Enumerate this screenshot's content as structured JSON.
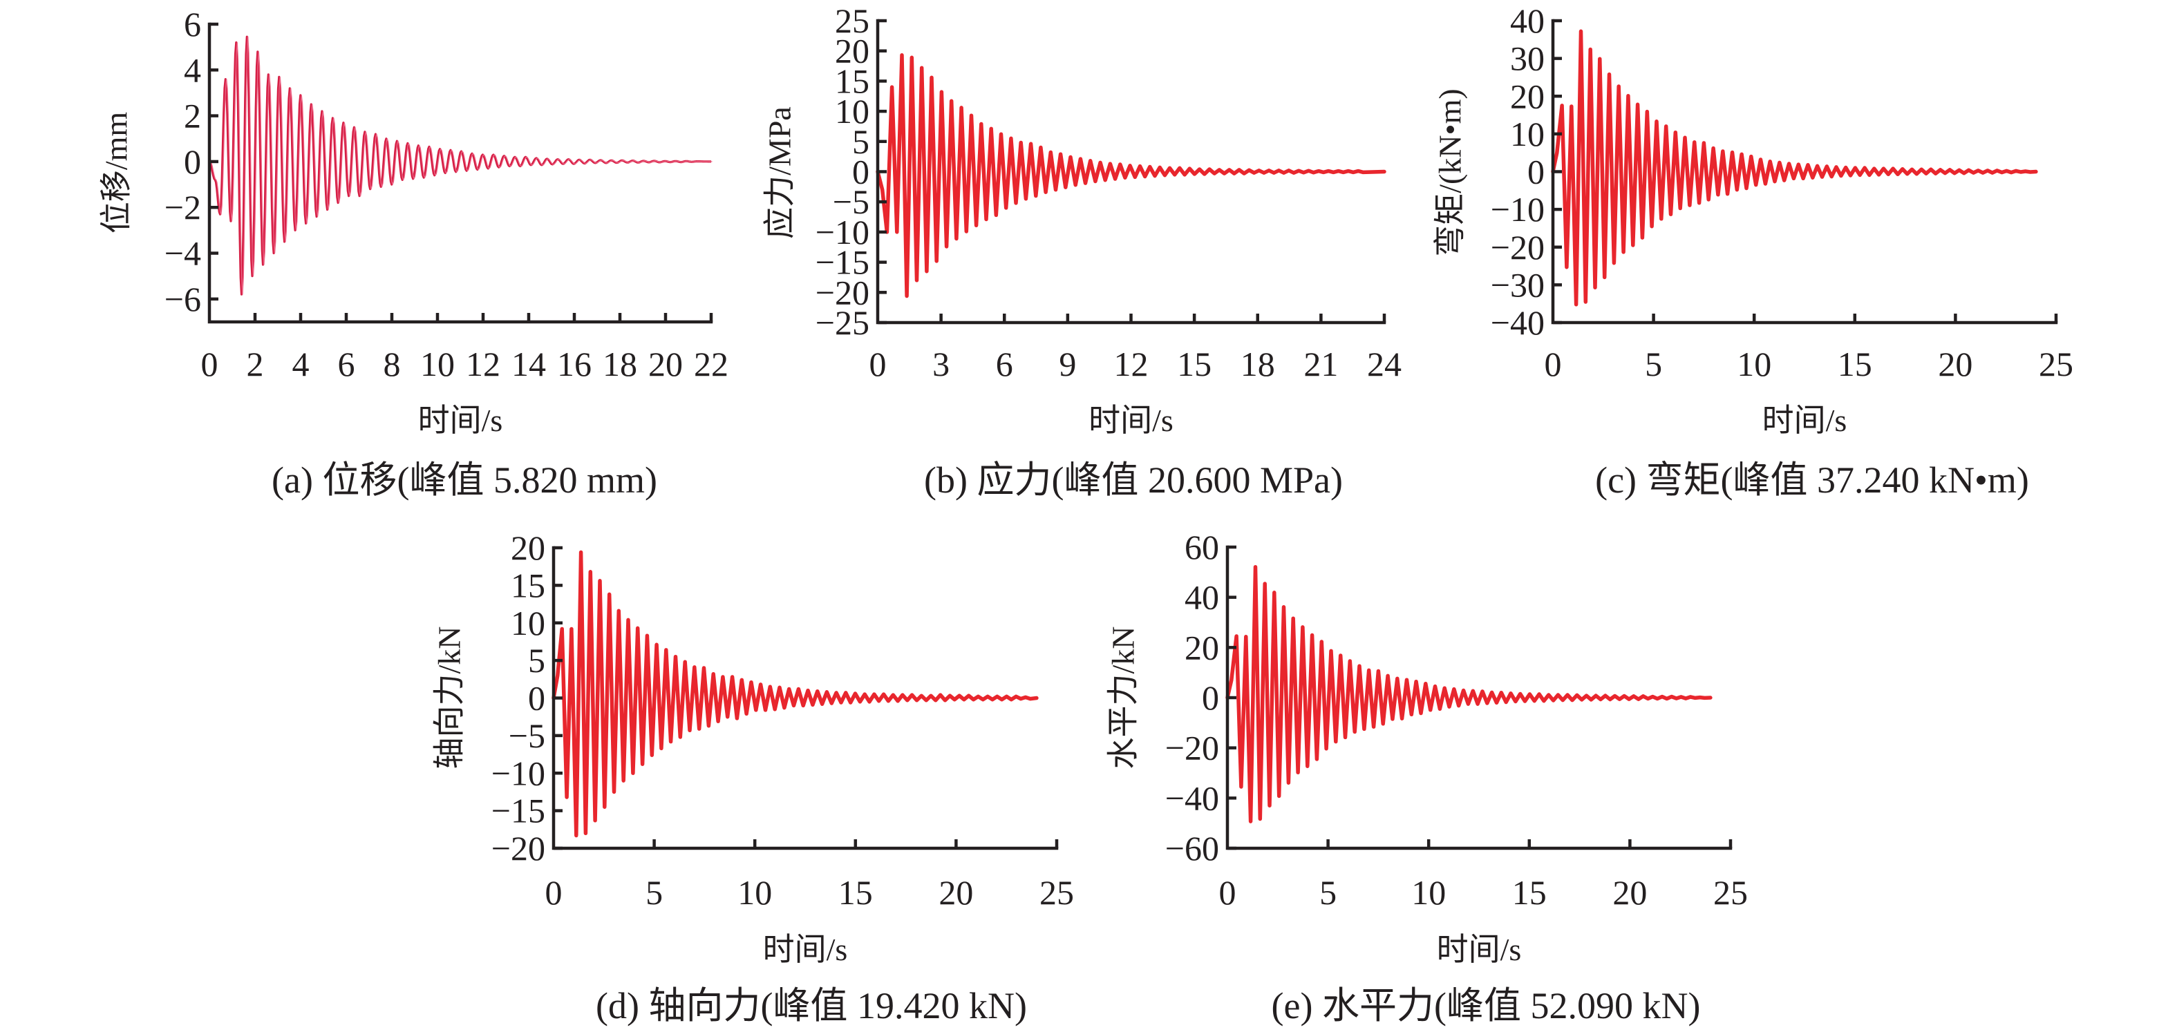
{
  "colors": {
    "axis": "#231f20",
    "series_a": "#d61f45",
    "series_a_thin": "#ee6a8a",
    "series": "#e8262d"
  },
  "chart_data": [
    {
      "id": "a",
      "type": "line",
      "ylabel": "位移/mm",
      "xlabel": "时间/s",
      "caption": "(a) 位移(峰值 5.820 mm)",
      "xlim": [
        0,
        22
      ],
      "ylim": [
        -7,
        6
      ],
      "xticks": [
        0,
        2,
        4,
        6,
        8,
        10,
        12,
        14,
        16,
        18,
        20,
        22
      ],
      "xtick_labels": [
        "0",
        "2",
        "4",
        "6",
        "8",
        "10",
        "12",
        "14",
        "16",
        "18",
        "20",
        "22"
      ],
      "yticks": [
        -6,
        -4,
        -2,
        0,
        2,
        4,
        6
      ],
      "ytick_labels": [
        "−6",
        "−4",
        "−2",
        "0",
        "2",
        "4",
        "6"
      ],
      "peak": 5.82,
      "smooth": true,
      "lead_points": [
        [
          0,
          0
        ],
        [
          0.25,
          -0.8
        ]
      ],
      "extrema_start": 0.47,
      "half_period": 0.235,
      "t_end": 22,
      "extrema": [
        -2.3,
        3.6,
        -2.6,
        5.2,
        -5.8,
        5.45,
        -5.0,
        4.8,
        -4.5,
        3.8,
        -4.0,
        3.7,
        -3.5,
        3.2,
        -3.0,
        2.9,
        -2.7,
        2.5,
        -2.4,
        2.2,
        -2.1,
        1.9,
        -1.8,
        1.7,
        -1.5,
        1.5,
        -1.5,
        1.3,
        -1.2,
        1.2,
        -1.1,
        1.0,
        -1.0,
        0.9,
        -0.8,
        0.8,
        -0.75,
        0.7,
        -0.7,
        0.65,
        -0.6,
        0.55,
        -0.5,
        0.5,
        -0.45,
        0.45,
        -0.4,
        0.35,
        -0.35,
        0.3,
        -0.3,
        0.3,
        -0.25,
        0.25,
        -0.2,
        0.2,
        -0.2,
        0.2,
        -0.15,
        0.15,
        -0.15,
        0.12,
        -0.12,
        0.1,
        -0.1,
        0.1,
        -0.1,
        0.08,
        -0.08,
        0.08,
        -0.06,
        0.06,
        -0.06,
        0.05,
        -0.05,
        0.05,
        -0.04,
        0.04,
        -0.04,
        0.03,
        -0.03,
        0.03,
        -0.03,
        0.02,
        -0.02,
        0.02,
        -0.02,
        0.02,
        -0.01,
        0.01
      ]
    },
    {
      "id": "b",
      "type": "line",
      "ylabel": "应力/MPa",
      "xlabel": "时间/s",
      "caption": "(b) 应力(峰值 20.600 MPa)",
      "xlim": [
        0,
        24
      ],
      "ylim": [
        -25,
        25
      ],
      "xticks": [
        0,
        3,
        6,
        9,
        12,
        15,
        18,
        21,
        24
      ],
      "xtick_labels": [
        "0",
        "3",
        "6",
        "9",
        "12",
        "15",
        "18",
        "21",
        "24"
      ],
      "yticks": [
        -25,
        -20,
        -15,
        -10,
        -5,
        0,
        5,
        10,
        15,
        20,
        25
      ],
      "ytick_labels": [
        "−25",
        "−20",
        "−15",
        "−10",
        "−5",
        "0",
        "5",
        "10",
        "15",
        "20",
        "25"
      ],
      "peak": 20.6,
      "smooth": false,
      "lead_points": [
        [
          0,
          0
        ],
        [
          0.22,
          -3
        ]
      ],
      "extrema_start": 0.44,
      "half_period": 0.235,
      "t_end": 24,
      "extrema": [
        -10,
        14,
        -10,
        19.3,
        -20.6,
        18.9,
        -18,
        17.2,
        -16.5,
        15.6,
        -14.8,
        13.2,
        -12.4,
        11.7,
        -11.1,
        10.6,
        -9.9,
        9.3,
        -8.9,
        7.9,
        -7.9,
        7.1,
        -7.2,
        6.2,
        -6,
        5.5,
        -5.2,
        4.8,
        -4.5,
        4.6,
        -4,
        4.0,
        -3.4,
        3.2,
        -3.0,
        2.9,
        -2.6,
        2.4,
        -2.2,
        2.1,
        -1.9,
        1.8,
        -1.6,
        1.5,
        -1.4,
        1.3,
        -1.2,
        1.2,
        -1.0,
        1.0,
        -0.9,
        0.9,
        -0.8,
        0.8,
        -0.7,
        0.7,
        -0.6,
        0.6,
        -0.5,
        0.6,
        -0.5,
        0.5,
        -0.4,
        0.4,
        -0.4,
        0.4,
        -0.3,
        0.3,
        -0.3,
        0.3,
        -0.3,
        0.3,
        -0.3,
        0.25,
        -0.2,
        0.2,
        -0.2,
        0.2,
        -0.2,
        0.2,
        -0.2,
        0.2,
        -0.2,
        0.15,
        -0.15,
        0.15,
        -0.15,
        0.1,
        -0.1,
        0.1,
        -0.1,
        0.1,
        -0.1,
        0.1,
        -0.1,
        0.1,
        -0.1
      ]
    },
    {
      "id": "c",
      "type": "line",
      "ylabel": "弯矩/(kN•m)",
      "xlabel": "时间/s",
      "caption": "(c) 弯矩(峰值 37.240 kN•m)",
      "xlim": [
        0,
        25
      ],
      "ylim": [
        -40,
        40
      ],
      "xticks": [
        0,
        5,
        10,
        15,
        20,
        25
      ],
      "xtick_labels": [
        "0",
        "5",
        "10",
        "15",
        "20",
        "25"
      ],
      "yticks": [
        -40,
        -30,
        -20,
        -10,
        0,
        10,
        20,
        30,
        40
      ],
      "ytick_labels": [
        "−40",
        "−30",
        "−20",
        "−10",
        "0",
        "10",
        "20",
        "30",
        "40"
      ],
      "peak": 37.24,
      "smooth": false,
      "lead_points": [
        [
          0,
          0
        ],
        [
          0.2,
          5
        ]
      ],
      "extrema_start": 0.45,
      "half_period": 0.235,
      "t_end": 24,
      "extrema": [
        17.5,
        -25.3,
        17.3,
        -35.2,
        37.2,
        -34.5,
        32.4,
        -30.7,
        29.9,
        -28,
        25.8,
        -24.2,
        22.6,
        -21.3,
        20.1,
        -19.5,
        17.8,
        -17.5,
        15.9,
        -14.5,
        13.3,
        -12.5,
        12,
        -11.3,
        10.4,
        -9.7,
        9,
        -8.9,
        7.8,
        -8.3,
        7.6,
        -7.4,
        6.2,
        -6.1,
        5.4,
        -5.9,
        5.1,
        -4.8,
        4.6,
        -4.4,
        4,
        -3.5,
        3.2,
        -3.2,
        2.7,
        -2.6,
        2.4,
        -2.3,
        2.1,
        -1.8,
        1.9,
        -1.8,
        1.8,
        -1.6,
        1.5,
        -1.4,
        1.4,
        -1.3,
        1.2,
        -1.1,
        1.1,
        -1.0,
        1.0,
        -0.9,
        1.0,
        -0.9,
        0.8,
        -0.8,
        0.8,
        -0.7,
        0.8,
        -0.7,
        0.7,
        -0.6,
        0.6,
        -0.6,
        0.6,
        -0.5,
        0.6,
        -0.5,
        0.5,
        -0.4,
        0.5,
        -0.4,
        0.4,
        -0.4,
        0.4,
        -0.3,
        0.3,
        -0.3,
        0.3,
        -0.3,
        0.3,
        -0.2,
        0.2,
        -0.2,
        0.2,
        -0.1,
        0.1,
        -0.1
      ]
    },
    {
      "id": "d",
      "type": "line",
      "ylabel": "轴向力/kN",
      "xlabel": "时间/s",
      "caption": "(d) 轴向力(峰值 19.420 kN)",
      "xlim": [
        0,
        25
      ],
      "ylim": [
        -20,
        20
      ],
      "xticks": [
        0,
        5,
        10,
        15,
        20,
        25
      ],
      "xtick_labels": [
        "0",
        "5",
        "10",
        "15",
        "20",
        "25"
      ],
      "yticks": [
        -20,
        -15,
        -10,
        -5,
        0,
        5,
        10,
        15,
        20
      ],
      "ytick_labels": [
        "−20",
        "−15",
        "−10",
        "−5",
        "0",
        "5",
        "10",
        "15",
        "20"
      ],
      "peak": 19.42,
      "smooth": false,
      "lead_points": [
        [
          0,
          0
        ],
        [
          0.2,
          3
        ]
      ],
      "extrema_start": 0.42,
      "half_period": 0.235,
      "t_end": 24,
      "extrema": [
        9.2,
        -13.2,
        9.2,
        -18.3,
        19.4,
        -18,
        16.8,
        -16.3,
        15.6,
        -14.5,
        13.8,
        -12.5,
        11.6,
        -11,
        10.4,
        -10,
        9.3,
        -8.8,
        8.3,
        -7.6,
        7.1,
        -6.7,
        6.4,
        -5.8,
        5.5,
        -5.2,
        4.8,
        -4.3,
        4.1,
        -4.1,
        4.0,
        -3.7,
        3.2,
        -3.1,
        2.8,
        -2.5,
        2.8,
        -2.7,
        2.4,
        -2.1,
        2.1,
        -1.6,
        1.8,
        -1.6,
        1.5,
        -1.5,
        1.4,
        -1.3,
        1.2,
        -1.0,
        1.2,
        -1.0,
        1.0,
        -0.9,
        0.9,
        -0.8,
        0.8,
        -0.7,
        0.7,
        -0.6,
        0.7,
        -0.6,
        0.6,
        -0.5,
        0.5,
        -0.5,
        0.5,
        -0.4,
        0.5,
        -0.4,
        0.4,
        -0.4,
        0.4,
        -0.3,
        0.4,
        -0.3,
        0.3,
        -0.3,
        0.3,
        -0.3,
        0.4,
        -0.3,
        0.3,
        -0.2,
        0.3,
        -0.2,
        0.3,
        -0.2,
        0.2,
        -0.2,
        0.2,
        -0.2,
        0.2,
        -0.2,
        0.2,
        -0.2,
        0.2,
        -0.1,
        0.1,
        -0.1
      ]
    },
    {
      "id": "e",
      "type": "line",
      "ylabel": "水平力/kN",
      "xlabel": "时间/s",
      "caption": "(e) 水平力(峰值 52.090 kN)",
      "xlim": [
        0,
        25
      ],
      "ylim": [
        -60,
        60
      ],
      "xticks": [
        0,
        5,
        10,
        15,
        20,
        25
      ],
      "xtick_labels": [
        "0",
        "5",
        "10",
        "15",
        "20",
        "25"
      ],
      "yticks": [
        -60,
        -40,
        -20,
        0,
        20,
        40,
        60
      ],
      "ytick_labels": [
        "−60",
        "−40",
        "−20",
        "0",
        "20",
        "40",
        "60"
      ],
      "peak": 52.09,
      "smooth": false,
      "lead_points": [
        [
          0,
          0
        ],
        [
          0.2,
          7
        ]
      ],
      "extrema_start": 0.45,
      "half_period": 0.235,
      "t_end": 24,
      "extrema": [
        24.5,
        -35.5,
        24.3,
        -49.3,
        52.1,
        -48.3,
        45.4,
        -43,
        41.9,
        -39.2,
        36.1,
        -33.9,
        31.6,
        -29.8,
        28.1,
        -27.3,
        24.9,
        -24.5,
        22.3,
        -20.3,
        18.6,
        -17.5,
        16.8,
        -15.8,
        14.6,
        -13.6,
        12.6,
        -12.5,
        10.9,
        -11.6,
        10.6,
        -10.4,
        8.7,
        -8.5,
        7.6,
        -8.3,
        7.1,
        -6.7,
        6.4,
        -6.2,
        5.6,
        -4.9,
        4.5,
        -4.5,
        3.8,
        -3.6,
        3.4,
        -3.2,
        2.9,
        -2.5,
        2.7,
        -2.5,
        2.5,
        -2.2,
        2.1,
        -2.0,
        2.0,
        -1.8,
        1.7,
        -1.5,
        1.5,
        -1.4,
        1.4,
        -1.3,
        1.4,
        -1.3,
        1.1,
        -1.1,
        1.1,
        -1.0,
        1.1,
        -1.0,
        1.0,
        -0.8,
        0.8,
        -0.8,
        0.8,
        -0.7,
        0.8,
        -0.7,
        0.7,
        -0.6,
        0.7,
        -0.6,
        0.6,
        -0.6,
        0.6,
        -0.4,
        0.4,
        -0.4,
        0.4,
        -0.4,
        0.4,
        -0.3,
        0.3,
        -0.3,
        0.3,
        -0.1,
        0.1,
        -0.1
      ]
    }
  ]
}
